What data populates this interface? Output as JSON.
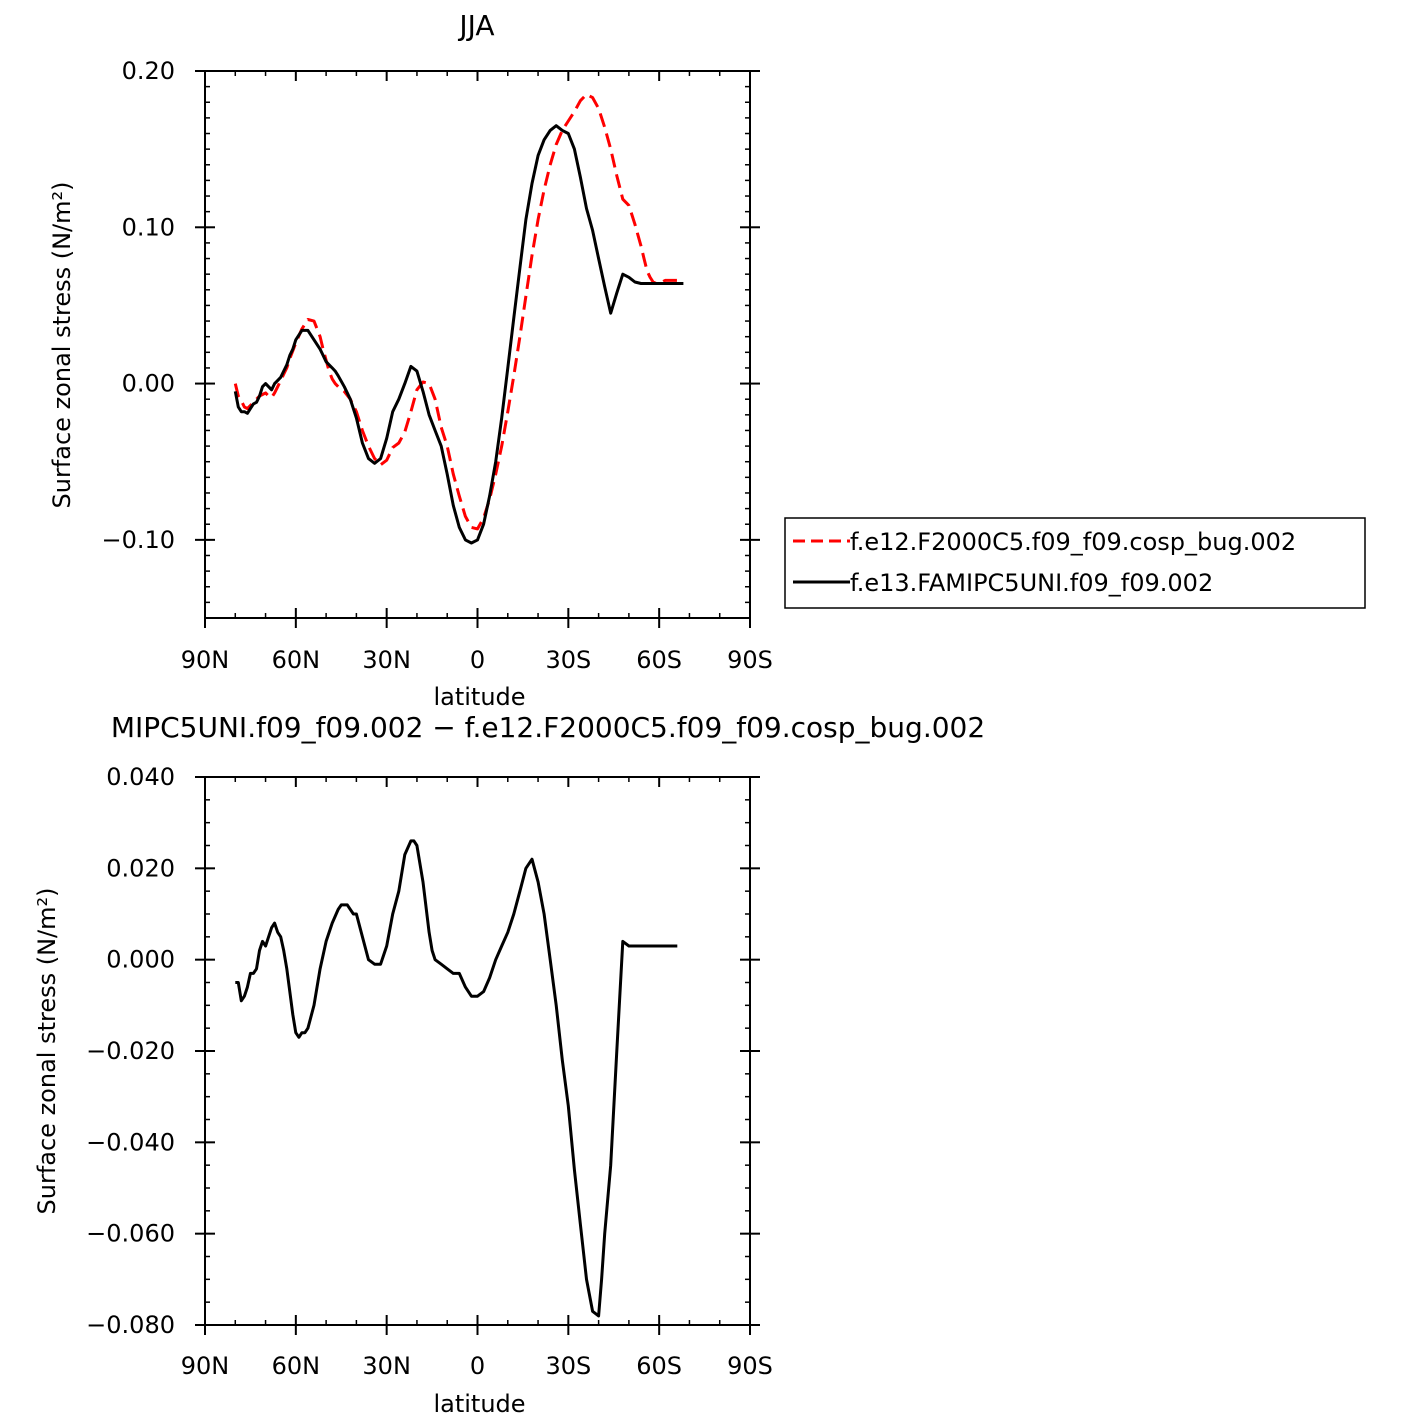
{
  "chart_data": [
    {
      "type": "line",
      "title": "JJA",
      "xlabel": "latitude",
      "ylabel": "Surface zonal stress (N/m²)",
      "xlim": [
        90,
        -90
      ],
      "ylim": [
        -0.15,
        0.2
      ],
      "x_ticks": [
        90,
        60,
        30,
        0,
        -30,
        -60,
        -90
      ],
      "x_tick_labels": [
        "90N",
        "60N",
        "30N",
        "0",
        "30S",
        "60S",
        "90S"
      ],
      "y_ticks": [
        0.2,
        0.1,
        0.0,
        -0.1
      ],
      "y_tick_labels": [
        "0.20",
        "0.10",
        "0.00",
        "−0.10"
      ],
      "legend_position": "right",
      "grid": false,
      "series": [
        {
          "name": "f.e12.F2000C5.f09_f09.cosp_bug.002",
          "color": "#ff0000",
          "style": "dashed",
          "x": [
            80,
            79,
            78,
            77,
            76,
            75,
            74,
            73,
            72,
            71,
            70,
            69,
            68,
            67,
            66,
            65,
            64,
            63,
            62,
            61,
            60,
            58,
            56,
            54,
            52,
            51,
            50,
            49,
            48,
            47,
            46,
            44,
            42,
            40,
            38,
            36,
            34,
            32,
            30,
            28,
            26,
            24,
            22,
            20,
            18,
            16,
            14,
            12,
            10,
            8,
            6,
            4,
            2,
            0,
            -2,
            -4,
            -6,
            -8,
            -10,
            -12,
            -14,
            -16,
            -18,
            -20,
            -22,
            -24,
            -26,
            -28,
            -30,
            -32,
            -34,
            -36,
            -38,
            -40,
            -42,
            -44,
            -46,
            -48,
            -50,
            -52,
            -54,
            -55,
            -56,
            -57,
            -58,
            -59,
            -60,
            -61,
            -62,
            -63,
            -64,
            -65,
            -66,
            -67,
            -68
          ],
          "y": [
            0.0,
            -0.008,
            -0.011,
            -0.015,
            -0.016,
            -0.014,
            -0.012,
            -0.01,
            -0.008,
            -0.007,
            -0.006,
            -0.008,
            -0.009,
            -0.006,
            -0.002,
            0.002,
            0.006,
            0.01,
            0.016,
            0.021,
            0.026,
            0.035,
            0.041,
            0.04,
            0.03,
            0.022,
            0.015,
            0.008,
            0.003,
            0.0,
            -0.002,
            -0.005,
            -0.01,
            -0.018,
            -0.03,
            -0.04,
            -0.048,
            -0.052,
            -0.049,
            -0.041,
            -0.038,
            -0.031,
            -0.018,
            -0.004,
            0.001,
            0.0,
            -0.01,
            -0.028,
            -0.04,
            -0.058,
            -0.072,
            -0.085,
            -0.092,
            -0.093,
            -0.086,
            -0.074,
            -0.058,
            -0.04,
            -0.018,
            0.005,
            0.03,
            0.056,
            0.082,
            0.105,
            0.124,
            0.14,
            0.153,
            0.162,
            0.168,
            0.174,
            0.181,
            0.185,
            0.183,
            0.176,
            0.164,
            0.15,
            0.133,
            0.118,
            0.114,
            0.102,
            0.088,
            0.08,
            0.072,
            0.068,
            0.065,
            0.064,
            0.064,
            0.065,
            0.066,
            0.066,
            0.066,
            0.066,
            0.066,
            0.066,
            0.066
          ]
        },
        {
          "name": "f.e13.FAMIPC5UNI.f09_f09.002",
          "color": "#000000",
          "style": "solid",
          "x": [
            80,
            79,
            78,
            77,
            76,
            75,
            74,
            73,
            72,
            71,
            70,
            69,
            68,
            67,
            66,
            65,
            64,
            63,
            62,
            61,
            60,
            58,
            56,
            54,
            52,
            51,
            50,
            49,
            48,
            47,
            46,
            44,
            42,
            40,
            38,
            36,
            34,
            32,
            30,
            28,
            26,
            24,
            22,
            20,
            18,
            16,
            14,
            12,
            10,
            8,
            6,
            4,
            2,
            0,
            -2,
            -4,
            -6,
            -8,
            -10,
            -12,
            -14,
            -16,
            -18,
            -20,
            -22,
            -24,
            -26,
            -28,
            -30,
            -32,
            -34,
            -36,
            -38,
            -40,
            -42,
            -44,
            -46,
            -48,
            -50,
            -52,
            -54,
            -55,
            -56,
            -57,
            -58,
            -59,
            -60,
            -61,
            -62,
            -63,
            -64,
            -65,
            -66,
            -67,
            -68
          ],
          "y": [
            -0.005,
            -0.015,
            -0.018,
            -0.018,
            -0.019,
            -0.016,
            -0.013,
            -0.012,
            -0.008,
            -0.002,
            0.0,
            -0.002,
            -0.004,
            0.0,
            0.002,
            0.004,
            0.008,
            0.012,
            0.018,
            0.022,
            0.028,
            0.034,
            0.034,
            0.028,
            0.022,
            0.018,
            0.014,
            0.012,
            0.01,
            0.008,
            0.005,
            -0.002,
            -0.01,
            -0.022,
            -0.038,
            -0.048,
            -0.051,
            -0.048,
            -0.035,
            -0.018,
            -0.01,
            0.0,
            0.011,
            0.008,
            -0.005,
            -0.02,
            -0.03,
            -0.04,
            -0.058,
            -0.078,
            -0.092,
            -0.1,
            -0.102,
            -0.1,
            -0.09,
            -0.072,
            -0.05,
            -0.022,
            0.01,
            0.042,
            0.074,
            0.105,
            0.128,
            0.146,
            0.156,
            0.162,
            0.165,
            0.162,
            0.16,
            0.15,
            0.132,
            0.112,
            0.098,
            0.08,
            0.062,
            0.045,
            0.058,
            0.07,
            0.068,
            0.065,
            0.064,
            0.064,
            0.064,
            0.064,
            0.064,
            0.064,
            0.064,
            0.064,
            0.064,
            0.064,
            0.064,
            0.064,
            0.064,
            0.064,
            0.064
          ]
        }
      ]
    },
    {
      "type": "line",
      "title": "MIPC5UNI.f09_f09.002 − f.e12.F2000C5.f09_f09.cosp_bug.002",
      "xlabel": "latitude",
      "ylabel": "Surface zonal stress (N/m²)",
      "xlim": [
        90,
        -90
      ],
      "ylim": [
        -0.08,
        0.04
      ],
      "x_ticks": [
        90,
        60,
        30,
        0,
        -30,
        -60,
        -90
      ],
      "x_tick_labels": [
        "90N",
        "60N",
        "30N",
        "0",
        "30S",
        "60S",
        "90S"
      ],
      "y_ticks": [
        0.04,
        0.02,
        0.0,
        -0.02,
        -0.04,
        -0.06,
        -0.08
      ],
      "y_tick_labels": [
        "0.040",
        "0.020",
        "0.000",
        "−0.020",
        "−0.040",
        "−0.060",
        "−0.080"
      ],
      "grid": false,
      "series": [
        {
          "color": "#000000",
          "style": "solid",
          "x": [
            80,
            79,
            78,
            77,
            76,
            75,
            74,
            73,
            72,
            71,
            70,
            69,
            68,
            67,
            66,
            65,
            64,
            63,
            62,
            61,
            60,
            59,
            58,
            57,
            56,
            54,
            52,
            50,
            48,
            46,
            45,
            44,
            43,
            42,
            41,
            40,
            38,
            36,
            34,
            32,
            30,
            28,
            26,
            24,
            22,
            21,
            20,
            18,
            16,
            15,
            14,
            12,
            10,
            8,
            6,
            4,
            2,
            0,
            -2,
            -4,
            -6,
            -8,
            -10,
            -12,
            -14,
            -16,
            -18,
            -20,
            -22,
            -24,
            -26,
            -28,
            -30,
            -32,
            -34,
            -36,
            -38,
            -40,
            -41,
            -42,
            -44,
            -46,
            -48,
            -50,
            -52,
            -54,
            -56,
            -58,
            -60,
            -61,
            -62,
            -63,
            -64,
            -65,
            -66
          ],
          "y": [
            -0.005,
            -0.005,
            -0.009,
            -0.008,
            -0.006,
            -0.003,
            -0.003,
            -0.002,
            0.002,
            0.004,
            0.003,
            0.005,
            0.007,
            0.008,
            0.006,
            0.005,
            0.002,
            -0.002,
            -0.007,
            -0.012,
            -0.016,
            -0.017,
            -0.016,
            -0.016,
            -0.015,
            -0.01,
            -0.002,
            0.004,
            0.008,
            0.011,
            0.012,
            0.012,
            0.012,
            0.011,
            0.01,
            0.01,
            0.005,
            0.0,
            -0.001,
            -0.001,
            0.003,
            0.01,
            0.015,
            0.023,
            0.026,
            0.026,
            0.025,
            0.017,
            0.006,
            0.002,
            0.0,
            -0.001,
            -0.002,
            -0.003,
            -0.003,
            -0.006,
            -0.008,
            -0.008,
            -0.007,
            -0.004,
            0.0,
            0.003,
            0.006,
            0.01,
            0.015,
            0.02,
            0.022,
            0.017,
            0.01,
            0.0,
            -0.01,
            -0.022,
            -0.032,
            -0.046,
            -0.058,
            -0.07,
            -0.077,
            -0.078,
            -0.07,
            -0.06,
            -0.045,
            -0.02,
            0.004,
            0.003,
            0.003,
            0.003,
            0.003,
            0.003,
            0.003,
            0.003,
            0.003,
            0.003,
            0.003,
            0.003,
            0.003
          ]
        }
      ]
    }
  ]
}
